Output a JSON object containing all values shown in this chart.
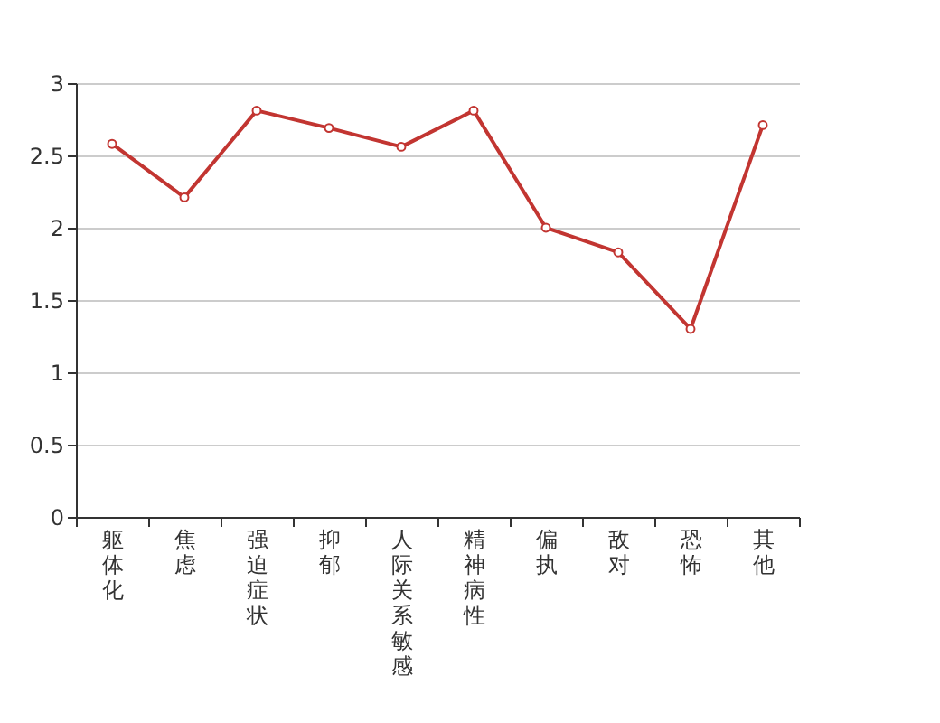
{
  "chart_data": {
    "type": "line",
    "categories": [
      "躯体化",
      "焦虑",
      "强迫症状",
      "抑郁",
      "人际关系敏感",
      "精神病性",
      "偏执",
      "敌对",
      "恐怖",
      "其他"
    ],
    "series": [
      {
        "color": "#c23531",
        "values": [
          2.58,
          2.21,
          2.81,
          2.69,
          2.56,
          2.81,
          2.0,
          1.83,
          1.3,
          2.71
        ]
      }
    ],
    "ylim": [
      0,
      3
    ],
    "yticks": [
      0,
      0.5,
      1,
      1.5,
      2,
      2.5,
      3
    ],
    "grid": "y",
    "marker": "circle"
  }
}
